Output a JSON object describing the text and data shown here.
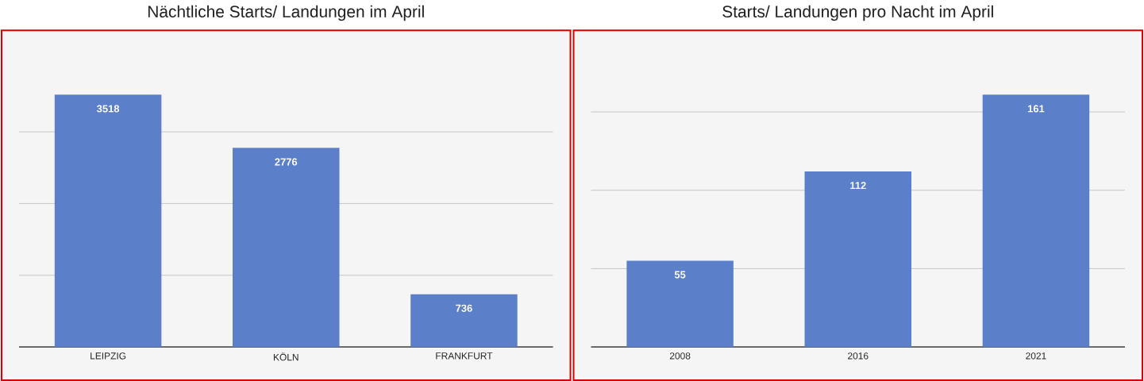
{
  "chart_data": [
    {
      "type": "bar",
      "title": "Nächtliche Starts/ Landungen im April",
      "categories": [
        "LEIPZIG",
        "KÖLN",
        "FRANKFURT"
      ],
      "values": [
        3518,
        2776,
        736
      ],
      "color": "#5b7fc8",
      "grid": "y",
      "tick_labels": "x",
      "data_labels": true
    },
    {
      "type": "bar",
      "title": "Starts/ Landungen pro Nacht im April",
      "categories": [
        "2008",
        "2016",
        "2021"
      ],
      "values": [
        55,
        112,
        161
      ],
      "color": "#5b7fc8",
      "grid": "y",
      "tick_labels": "x",
      "data_labels": true
    }
  ]
}
